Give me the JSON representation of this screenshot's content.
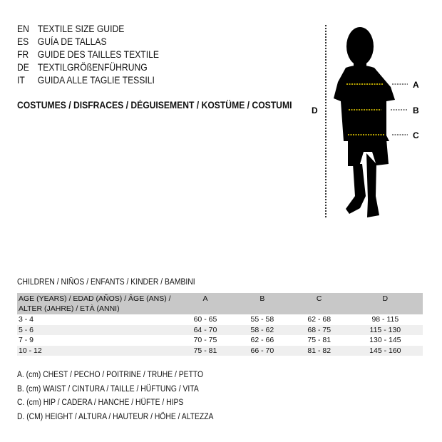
{
  "guide": [
    {
      "code": "EN",
      "title": "TEXTILE SIZE GUIDE"
    },
    {
      "code": "ES",
      "title": "GUÍA DE TALLAS"
    },
    {
      "code": "FR",
      "title": "GUIDE DES TAILLES TEXTILE"
    },
    {
      "code": "DE",
      "title": "TEXTILGRÖßENFÜHRUNG"
    },
    {
      "code": "IT",
      "title": "GUIDA ALLE TAGLIE TESSILI"
    }
  ],
  "category": "COSTUMES / DISFRACES / DÉGUISEMENT / KOSTÜME / COSTUMI",
  "figure": {
    "labels": {
      "a": "A",
      "b": "B",
      "c": "C",
      "d": "D"
    },
    "marker_color": "#f2d700"
  },
  "table": {
    "caption": "CHILDREN / NIÑOS / ENFANTS / KINDER / BAMBINI",
    "headers": [
      "AGE (YEARS) / EDAD (AÑOS) / ÂGE (ANS) / ALTER (JAHRE) / ETÀ (ANNI)",
      "A",
      "B",
      "C",
      "D"
    ],
    "rows": [
      [
        "3 - 4",
        "60 - 65",
        "55 - 58",
        "62 - 68",
        "98 - 115"
      ],
      [
        "5 - 6",
        "64 - 70",
        "58 - 62",
        "68 - 75",
        "115 - 130"
      ],
      [
        "7 - 9",
        "70 - 75",
        "62 - 66",
        "75 - 81",
        "130 - 145"
      ],
      [
        "10 - 12",
        "75 - 81",
        "66 - 70",
        "81 - 82",
        "145 - 160"
      ]
    ]
  },
  "notes": [
    "A. (cm) CHEST / PECHO / POITRINE / TRUHE / PETTO",
    "B. (cm) WAIST / CINTURA / TAILLE / HÜFTUNG / VITA",
    "C. (cm) HIP / CADERA / HANCHE / HÜFTE / HIPS",
    "D. (CM) HEIGHT / ALTURA / HAUTEUR / HÖHE / ALTEZZA"
  ]
}
